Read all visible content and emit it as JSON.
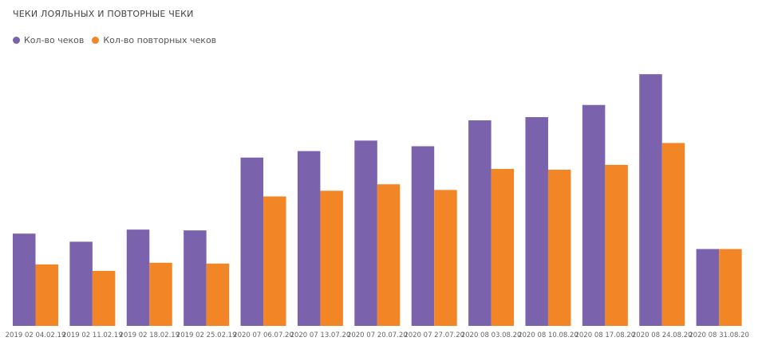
{
  "chart_data": {
    "type": "bar",
    "title": "ЧЕКИ ЛОЯЛЬНЫХ И ПОВТОРНЫЕ ЧЕКИ",
    "xlabel": "",
    "ylabel": "",
    "categories": [
      "2019 02 04.02.19",
      "2019 02 11.02.19",
      "2019 02 18.02.19",
      "2019 02 25.02.19",
      "2020 07 06.07.20",
      "2020 07 13.07.20",
      "2020 07 20.07.20",
      "2020 07 27.07.20",
      "2020 08 03.08.20",
      "2020 08 10.08.20",
      "2020 08 17.08.20",
      "2020 08 24.08.20",
      "2020 08 31.08.20"
    ],
    "series": [
      {
        "name": "Кол-во чеков",
        "color": "#7a62ad",
        "values": [
          114,
          104,
          119,
          118,
          208,
          216,
          229,
          222,
          254,
          258,
          273,
          311,
          95
        ]
      },
      {
        "name": "Кол-во повторных чеков",
        "color": "#f28626",
        "values": [
          76,
          68,
          78,
          77,
          160,
          167,
          175,
          168,
          194,
          193,
          199,
          226,
          95
        ]
      }
    ],
    "ylim": [
      0,
      320
    ],
    "grid": false,
    "legend": "top-left"
  }
}
